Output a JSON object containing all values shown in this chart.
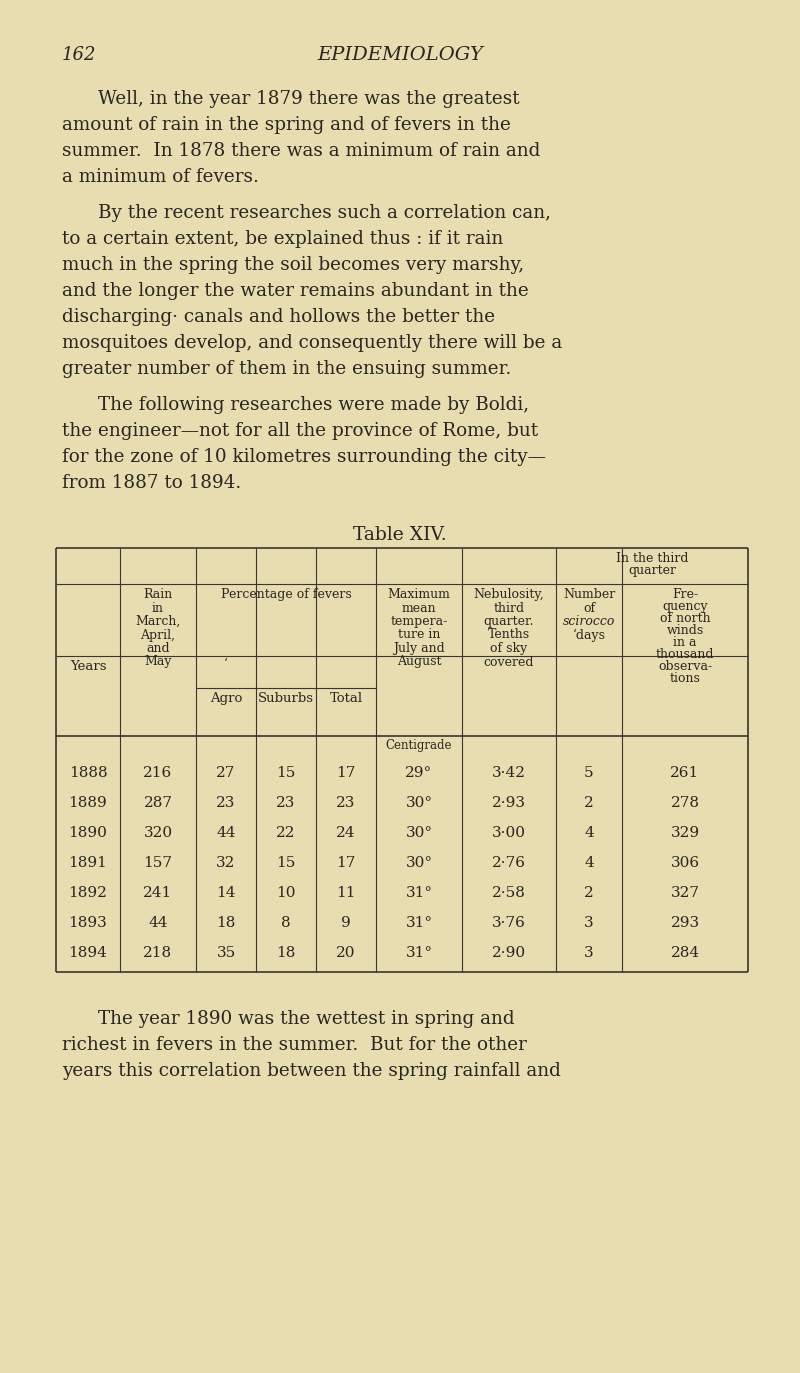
{
  "bg_color": "#e8ddb0",
  "text_color": "#2a2520",
  "page_number": "162",
  "page_title": "EPIDEMIOLOGY",
  "table_title": "Table XIV.",
  "para1_lines": [
    "Well, in the year 1879 there was the greatest",
    "amount of rain in the spring and of fevers in the",
    "summer.  In 1878 there was a minimum of rain and",
    "a minimum of fevers."
  ],
  "para2_lines": [
    "By the recent researches such a correlation can,",
    "to a certain extent, be explained thus : if it rain",
    "much in the spring the soil becomes very marshy,",
    "and the longer the water remains abundant in the",
    "discharging· canals and hollows the better the",
    "mosquitoes develop, and consequently there will be a",
    "greater number of them in the ensuing summer."
  ],
  "para3_lines": [
    "The following researches were made by Boldi,",
    "the engineer—not for all the province of Rome, but",
    "for the zone of 10 kilometres surrounding the city—",
    "from 1887 to 1894."
  ],
  "para4_lines": [
    "The year 1890 was the wettest in spring and",
    "richest in fevers in the summer.  But for the other",
    "years this correlation between the spring rainfall and"
  ],
  "table_data": {
    "years": [
      "1888",
      "1889",
      "1890",
      "1891",
      "1892",
      "1893",
      "1894"
    ],
    "rain": [
      "216",
      "287",
      "320",
      "157",
      "241",
      "44",
      "218"
    ],
    "agro": [
      "27",
      "23",
      "44",
      "32",
      "14",
      "18",
      "35"
    ],
    "suburbs": [
      "15",
      "23",
      "22",
      "15",
      "10",
      "8",
      "18"
    ],
    "total": [
      "17",
      "23",
      "24",
      "17",
      "11",
      "9",
      "20"
    ],
    "max_temp": [
      "29°",
      "30°",
      "30°",
      "30°",
      "31°",
      "31°",
      "31°"
    ],
    "nebulosity": [
      "3·42",
      "2·93",
      "3·00",
      "2·76",
      "2·58",
      "3·76",
      "2·90"
    ],
    "scirocco": [
      "5",
      "2",
      "4",
      "4",
      "2",
      "3",
      "3"
    ],
    "north_winds": [
      "261",
      "278",
      "329",
      "306",
      "327",
      "293",
      "284"
    ]
  }
}
